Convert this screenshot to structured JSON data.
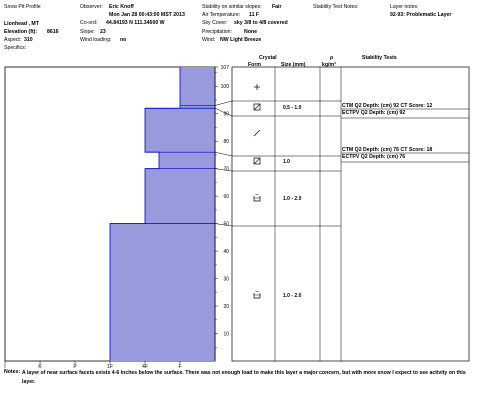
{
  "header": {
    "title": "Snow Pit Profile",
    "location": "Lionhead , MT",
    "elevation_label": "Elevation (ft):",
    "elevation_value": "8616",
    "aspect_label": "Aspect:",
    "aspect_value": "310",
    "specifics_label": "Specifics:",
    "observer_label": "Observer:",
    "observer_value": "Eric Knoff",
    "datetime": "Mon Jan 28 00:43:00 MST 2013",
    "coord_label": "Co-ord:",
    "coord_value": "44.84193 N 111.34600 W",
    "slope_label": "Slope:",
    "slope_value": "23",
    "wind_loading_label": "Wind loading:",
    "wind_loading_value": "no",
    "stability_label": "Stability on similar slopes:",
    "stability_value": "Fair",
    "air_temp_label": "Air Temperature:",
    "air_temp_value": "11 F",
    "sky_label": "Sky Cover:",
    "sky_value": "sky 3/8 to 4/8 covered",
    "precip_label": "Precipitation:",
    "precip_value": "None",
    "wind_label": "Wind:",
    "wind_value": "NW Light Breeze",
    "test_notes_label": "Stability Test Notes:",
    "layer_notes_label": "Layer notes:",
    "layer_notes_value": "92-93: Problematic Layer"
  },
  "columns": {
    "crystal": "Crystal",
    "form": "Form",
    "size": "Size (mm)",
    "rho": "ρ",
    "density_unit": "kg/m³",
    "stability_tests": "Stability Tests"
  },
  "tests": [
    {
      "line1": "CTM Q2 Depth: (cm) 92 CT Score: 12",
      "line2": "ECTPV Q2 Depth: (cm) 92"
    },
    {
      "line1": "CTM Q2 Depth: (cm) 76 CT Score: 18",
      "line2": "ECTPV Q2 Depth: (cm) 76"
    }
  ],
  "notes": {
    "label": "Notes:",
    "text": "A layer of near surface facets exists 4-6 inches below the surface. There was not enough load to make this layer a major concern, but with more snow I expect to see activity on this layer."
  },
  "chart_data": {
    "type": "bar",
    "orientation": "horizontal",
    "y_axis": {
      "min": 0,
      "max": 107,
      "ticks": [
        10,
        20,
        30,
        40,
        50,
        60,
        70,
        80,
        90,
        100,
        107
      ]
    },
    "hardness_labels": [
      "I",
      "K",
      "P",
      "1F",
      "4F",
      "F"
    ],
    "hardness_ticks": [
      "I",
      "K",
      "P",
      "1F",
      "4F",
      "F"
    ],
    "colors": {
      "fill": "#9999dd",
      "edge": "#0000c0",
      "problem_line": "#ff0000"
    },
    "layers": [
      {
        "top": 107,
        "bottom": 93,
        "hardness": 1.0
      },
      {
        "top": 93,
        "bottom": 92,
        "hardness": 1.0
      },
      {
        "top": 92,
        "bottom": 76,
        "hardness": 2.0
      },
      {
        "top": 76,
        "bottom": 70,
        "hardness": 1.6
      },
      {
        "top": 70,
        "bottom": 50,
        "hardness": 2.0
      },
      {
        "top": 50,
        "bottom": 0,
        "hardness": 3.0
      }
    ],
    "problematic_depth": 93,
    "crystal_rows": [
      {
        "top": 107,
        "bottom": 93,
        "form_icon": "plus-icon",
        "size": ""
      },
      {
        "top": 93,
        "bottom": 92,
        "form_icon": "square-x-icon",
        "size": "0.5 - 1.0"
      },
      {
        "top": 92,
        "bottom": 76,
        "form_icon": "slash-icon",
        "size": ""
      },
      {
        "top": 76,
        "bottom": 70,
        "form_icon": "square-x-icon",
        "size": "1.0"
      },
      {
        "top": 70,
        "bottom": 50,
        "form_icon": "cup-icon",
        "size": "1.0 - 2.0"
      },
      {
        "top": 50,
        "bottom": 0,
        "form_icon": "cup-icon",
        "size": "1.0 - 2.0"
      }
    ]
  }
}
